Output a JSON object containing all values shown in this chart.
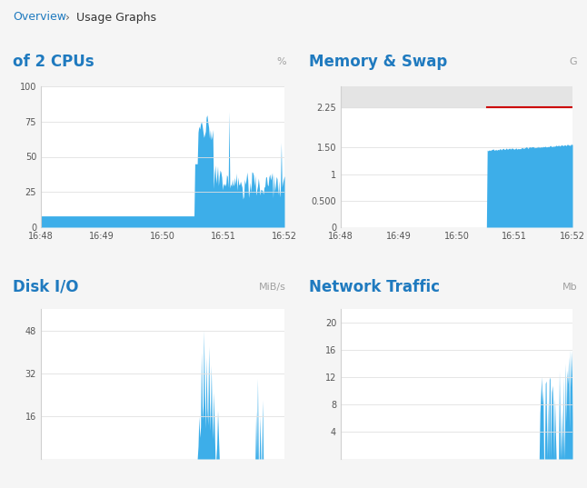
{
  "bg_color": "#f5f5f5",
  "panel_bg": "#ffffff",
  "border_color": "#cccccc",
  "blue_title": "#1f7abf",
  "gray_unit": "#a0a0a0",
  "bar_color": "#3daee9",
  "red_line": "#cc0000",
  "memory_fill_gray": "#e4e4e4",
  "breadcrumb_blue": "#1f7abf",
  "breadcrumb_text": "#333333",
  "time_labels": [
    "16:48",
    "16:49",
    "16:50",
    "16:51",
    "16:52"
  ],
  "cpu_title": "of 2 CPUs",
  "cpu_unit": "%",
  "mem_title": "Memory & Swap",
  "mem_unit": "G",
  "disk_title": "Disk I/O",
  "disk_unit": "MiB/s",
  "net_title": "Network Traffic",
  "net_unit": "Mb",
  "sep_color": "#c8c8c8"
}
